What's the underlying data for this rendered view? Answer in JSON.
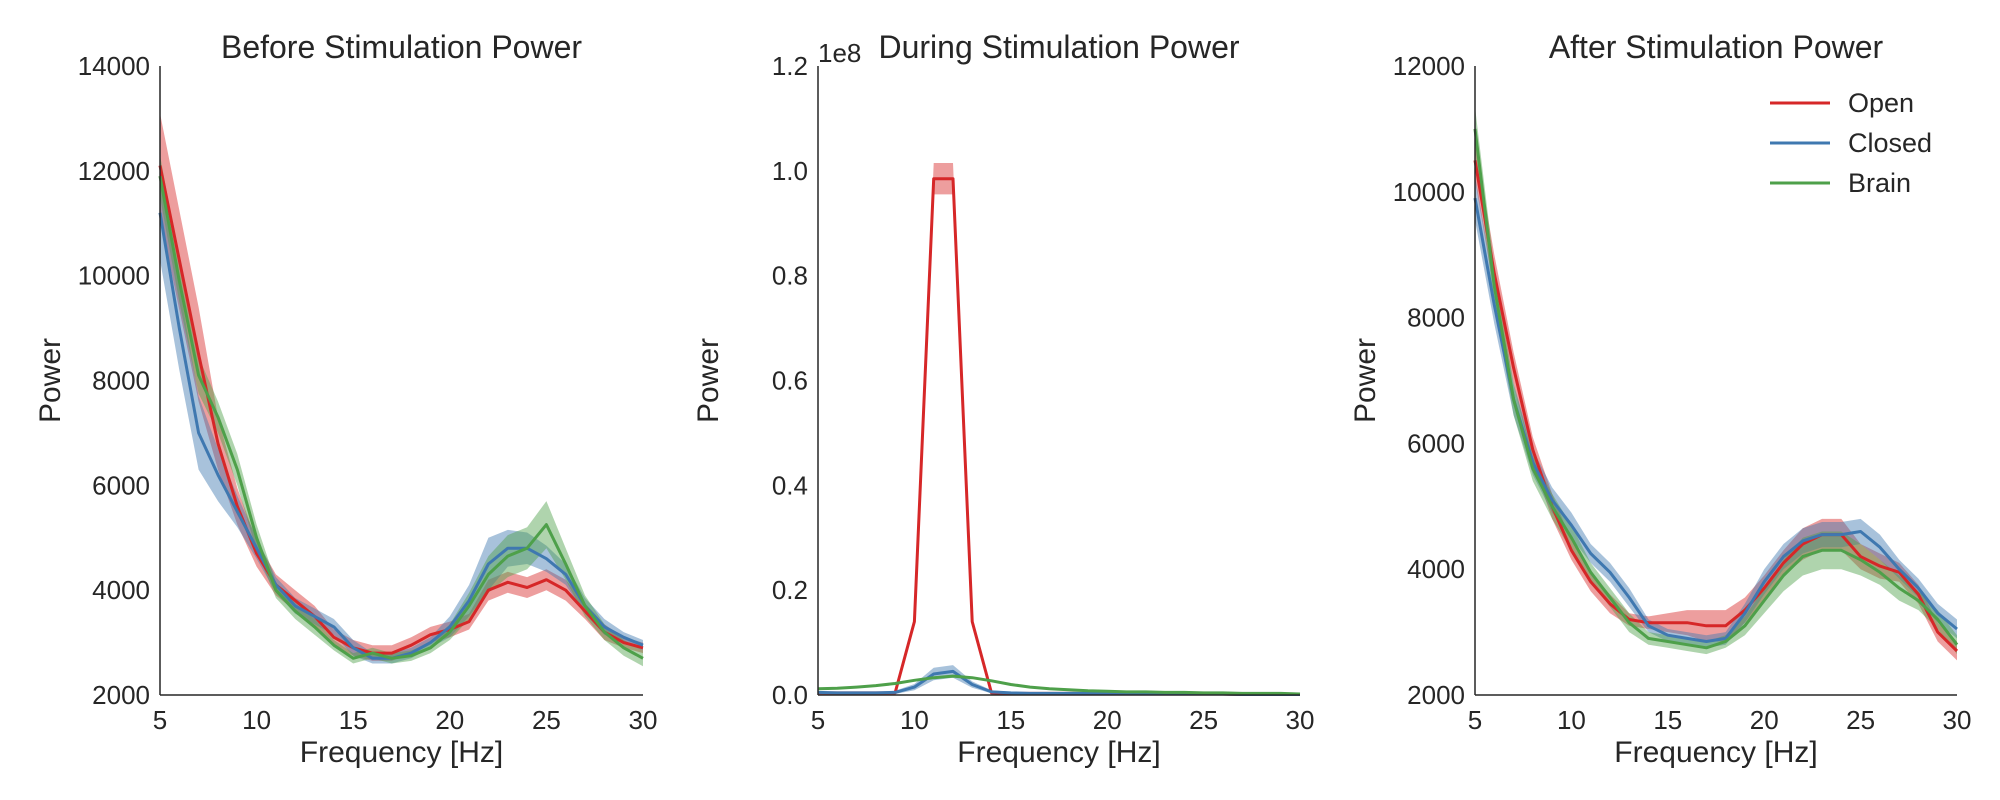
{
  "colors": {
    "open": "#d62728",
    "closed": "#3f78b0",
    "brain": "#4ea04a"
  },
  "chart_data": [
    {
      "type": "line",
      "title": "Before Stimulation Power",
      "xlabel": "Frequency [Hz]",
      "ylabel": "Power",
      "xlim": [
        5,
        30
      ],
      "ylim": [
        2000,
        14000
      ],
      "xticks": [
        "5",
        "10",
        "15",
        "20",
        "25",
        "30"
      ],
      "yticks": [
        "2000",
        "4000",
        "6000",
        "8000",
        "10000",
        "12000",
        "14000"
      ],
      "x": [
        5,
        6,
        7,
        8,
        9,
        10,
        11,
        12,
        13,
        14,
        15,
        16,
        17,
        18,
        19,
        20,
        21,
        22,
        23,
        24,
        25,
        26,
        27,
        28,
        29,
        30
      ],
      "series": [
        {
          "name": "Open",
          "color_key": "open",
          "values": [
            12100,
            10300,
            8500,
            6800,
            5600,
            4700,
            4100,
            3800,
            3500,
            3100,
            2900,
            2800,
            2800,
            2950,
            3150,
            3250,
            3400,
            4000,
            4150,
            4050,
            4200,
            4000,
            3600,
            3200,
            3000,
            2900
          ],
          "band": [
            1000,
            950,
            900,
            500,
            350,
            250,
            200,
            200,
            200,
            150,
            150,
            150,
            150,
            150,
            150,
            150,
            150,
            200,
            200,
            200,
            200,
            200,
            150,
            150,
            100,
            100
          ]
        },
        {
          "name": "Closed",
          "color_key": "closed",
          "values": [
            11200,
            9000,
            7000,
            6200,
            5500,
            4800,
            4100,
            3700,
            3500,
            3300,
            2900,
            2700,
            2700,
            2800,
            3000,
            3300,
            3800,
            4500,
            4800,
            4800,
            4600,
            4300,
            3700,
            3300,
            3100,
            2950
          ],
          "band": [
            900,
            800,
            700,
            500,
            300,
            200,
            150,
            150,
            150,
            150,
            150,
            100,
            100,
            100,
            100,
            200,
            300,
            500,
            350,
            300,
            250,
            200,
            150,
            150,
            100,
            100
          ]
        },
        {
          "name": "Brain",
          "color_key": "brain",
          "values": [
            11900,
            9900,
            8100,
            7300,
            6300,
            5000,
            4000,
            3600,
            3300,
            2950,
            2700,
            2800,
            2700,
            2750,
            2900,
            3200,
            3700,
            4300,
            4650,
            4800,
            5250,
            4500,
            3700,
            3200,
            2900,
            2700
          ],
          "band": [
            400,
            400,
            350,
            300,
            300,
            250,
            150,
            150,
            150,
            100,
            100,
            100,
            100,
            100,
            100,
            150,
            250,
            350,
            400,
            400,
            450,
            300,
            200,
            150,
            150,
            150
          ]
        }
      ]
    },
    {
      "type": "line",
      "title": "During Stimulation Power",
      "xlabel": "Frequency [Hz]",
      "ylabel": "Power",
      "offset_text": "1e8",
      "xlim": [
        5,
        30
      ],
      "ylim": [
        0,
        1.2
      ],
      "xticks": [
        "5",
        "10",
        "15",
        "20",
        "25",
        "30"
      ],
      "yticks": [
        "0.0",
        "0.2",
        "0.4",
        "0.6",
        "0.8",
        "1.0",
        "1.2"
      ],
      "x": [
        5,
        6,
        7,
        8,
        9,
        10,
        11,
        12,
        13,
        14,
        15,
        16,
        17,
        18,
        19,
        20,
        21,
        22,
        23,
        24,
        25,
        26,
        27,
        28,
        29,
        30
      ],
      "series": [
        {
          "name": "Open",
          "color_key": "open",
          "values": [
            0.004,
            0.004,
            0.004,
            0.004,
            0.004,
            0.14,
            0.985,
            0.985,
            0.14,
            0.004,
            0.003,
            0.003,
            0.003,
            0.003,
            0.003,
            0.002,
            0.002,
            0.002,
            0.002,
            0.002,
            0.002,
            0.002,
            0.001,
            0.001,
            0.001,
            0.001
          ],
          "band": [
            0.002,
            0.002,
            0.002,
            0.002,
            0.002,
            0.005,
            0.03,
            0.03,
            0.005,
            0.002,
            0.001,
            0.001,
            0.001,
            0.001,
            0.001,
            0.001,
            0.001,
            0.001,
            0.001,
            0.001,
            0.001,
            0.001,
            0.001,
            0.001,
            0.001,
            0.001
          ]
        },
        {
          "name": "Closed",
          "color_key": "closed",
          "values": [
            0.005,
            0.004,
            0.004,
            0.004,
            0.005,
            0.015,
            0.04,
            0.045,
            0.02,
            0.006,
            0.004,
            0.003,
            0.003,
            0.003,
            0.003,
            0.003,
            0.002,
            0.002,
            0.002,
            0.002,
            0.002,
            0.002,
            0.001,
            0.001,
            0.001,
            0.001
          ],
          "band": [
            0.002,
            0.002,
            0.002,
            0.002,
            0.003,
            0.006,
            0.012,
            0.012,
            0.006,
            0.003,
            0.002,
            0.002,
            0.002,
            0.001,
            0.001,
            0.001,
            0.001,
            0.001,
            0.001,
            0.001,
            0.001,
            0.001,
            0.001,
            0.001,
            0.001,
            0.001
          ]
        },
        {
          "name": "Brain",
          "color_key": "brain",
          "values": [
            0.012,
            0.013,
            0.015,
            0.018,
            0.022,
            0.028,
            0.033,
            0.036,
            0.033,
            0.027,
            0.02,
            0.015,
            0.012,
            0.01,
            0.008,
            0.007,
            0.006,
            0.006,
            0.005,
            0.005,
            0.004,
            0.004,
            0.003,
            0.003,
            0.003,
            0.002
          ],
          "band": [
            0.001,
            0.001,
            0.001,
            0.001,
            0.001,
            0.002,
            0.002,
            0.002,
            0.002,
            0.002,
            0.001,
            0.001,
            0.001,
            0.001,
            0.001,
            0.001,
            0.001,
            0.001,
            0.001,
            0.001,
            0.001,
            0.001,
            0.001,
            0.001,
            0.001,
            0.001
          ]
        }
      ]
    },
    {
      "type": "line",
      "title": "After Stimulation Power",
      "xlabel": "Frequency [Hz]",
      "ylabel": "Power",
      "xlim": [
        5,
        30
      ],
      "ylim": [
        2000,
        12000
      ],
      "xticks": [
        "5",
        "10",
        "15",
        "20",
        "25",
        "30"
      ],
      "yticks": [
        "2000",
        "4000",
        "6000",
        "8000",
        "10000",
        "12000"
      ],
      "legend": {
        "position": "top-right",
        "entries": [
          "Open",
          "Closed",
          "Brain"
        ]
      },
      "x": [
        5,
        6,
        7,
        8,
        9,
        10,
        11,
        12,
        13,
        14,
        15,
        16,
        17,
        18,
        19,
        20,
        21,
        22,
        23,
        24,
        25,
        26,
        27,
        28,
        29,
        30
      ],
      "series": [
        {
          "name": "Open",
          "color_key": "open",
          "values": [
            10500,
            8700,
            7200,
            5900,
            5000,
            4300,
            3800,
            3450,
            3200,
            3150,
            3150,
            3150,
            3100,
            3100,
            3350,
            3700,
            4100,
            4400,
            4550,
            4550,
            4200,
            4050,
            3950,
            3600,
            3000,
            2700
          ],
          "band": [
            300,
            300,
            250,
            200,
            200,
            150,
            150,
            150,
            100,
            100,
            150,
            200,
            250,
            250,
            200,
            200,
            200,
            250,
            250,
            250,
            200,
            200,
            150,
            150,
            150,
            150
          ]
        },
        {
          "name": "Closed",
          "color_key": "closed",
          "values": [
            9900,
            8200,
            6700,
            5700,
            5100,
            4700,
            4250,
            3950,
            3550,
            3100,
            2950,
            2900,
            2850,
            2900,
            3300,
            3800,
            4200,
            4450,
            4550,
            4550,
            4600,
            4350,
            4000,
            3700,
            3300,
            3050
          ],
          "band": [
            350,
            300,
            250,
            200,
            200,
            200,
            150,
            150,
            150,
            100,
            100,
            100,
            100,
            100,
            150,
            200,
            200,
            200,
            200,
            200,
            200,
            200,
            150,
            150,
            150,
            150
          ]
        },
        {
          "name": "Brain",
          "color_key": "brain",
          "values": [
            11000,
            8500,
            6700,
            5600,
            5000,
            4500,
            3950,
            3550,
            3150,
            2900,
            2850,
            2800,
            2750,
            2850,
            3100,
            3500,
            3900,
            4200,
            4300,
            4300,
            4150,
            3950,
            3700,
            3500,
            3200,
            2800
          ],
          "band": [
            350,
            300,
            250,
            200,
            200,
            200,
            150,
            150,
            150,
            100,
            100,
            100,
            100,
            100,
            150,
            200,
            250,
            300,
            300,
            300,
            250,
            200,
            200,
            150,
            150,
            150
          ]
        }
      ]
    }
  ]
}
